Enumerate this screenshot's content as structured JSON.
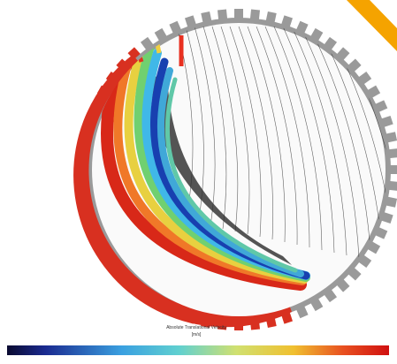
{
  "colorbar": {
    "title": "Absolute Translational Velocity",
    "unit": "[m/s]"
  }
}
